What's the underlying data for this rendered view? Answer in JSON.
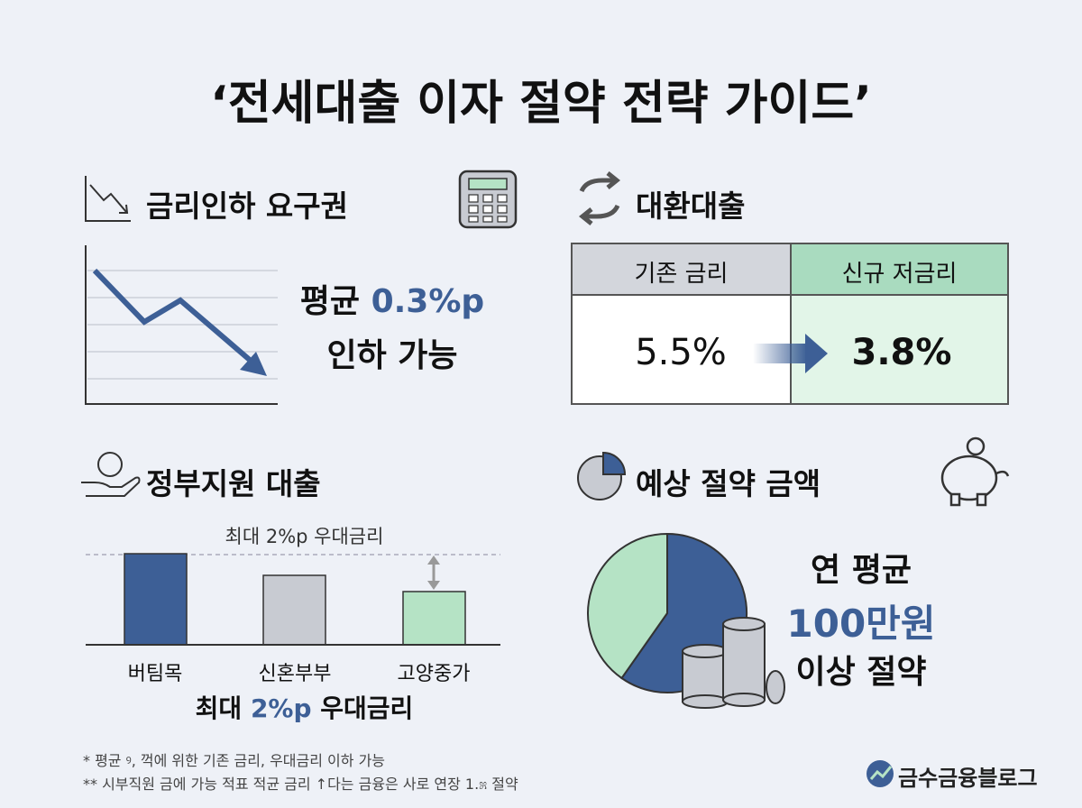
{
  "header": {
    "title": "‘전세대출 이자 절약 전략 가이드’"
  },
  "rate_cut": {
    "heading": "금리인하 요구권",
    "line1_prefix": "평균",
    "line1_value": "0.3%p",
    "line2": "인하 가능"
  },
  "refinance": {
    "heading": "대환대출",
    "table": {
      "headers": [
        "기존 금리",
        "신규 저금리"
      ],
      "values": [
        "5.5%",
        "3.8%"
      ]
    }
  },
  "gov_loan": {
    "heading": "정부지원 대출",
    "guide_label": "최대 2%p 우대금리",
    "categories": [
      "버팀목",
      "신혼부부",
      "고양중가"
    ],
    "caption_prefix": "최대",
    "caption_value": "2%p",
    "caption_suffix": "우대금리"
  },
  "savings": {
    "heading": "예상 절약 금액",
    "line1": "연 평균",
    "line2": "100만원",
    "line3": "이상 절약"
  },
  "footnotes": [
    "* 평균 ꝰ, 꺽에 위한 기존 금리, 우대금리 이하 가능",
    "** 시부직원 금에 가능 적표 적균 금리 ↑다는 금융은 사로 연장 1.೫ 절약"
  ],
  "brand": "금수금융블로그"
}
